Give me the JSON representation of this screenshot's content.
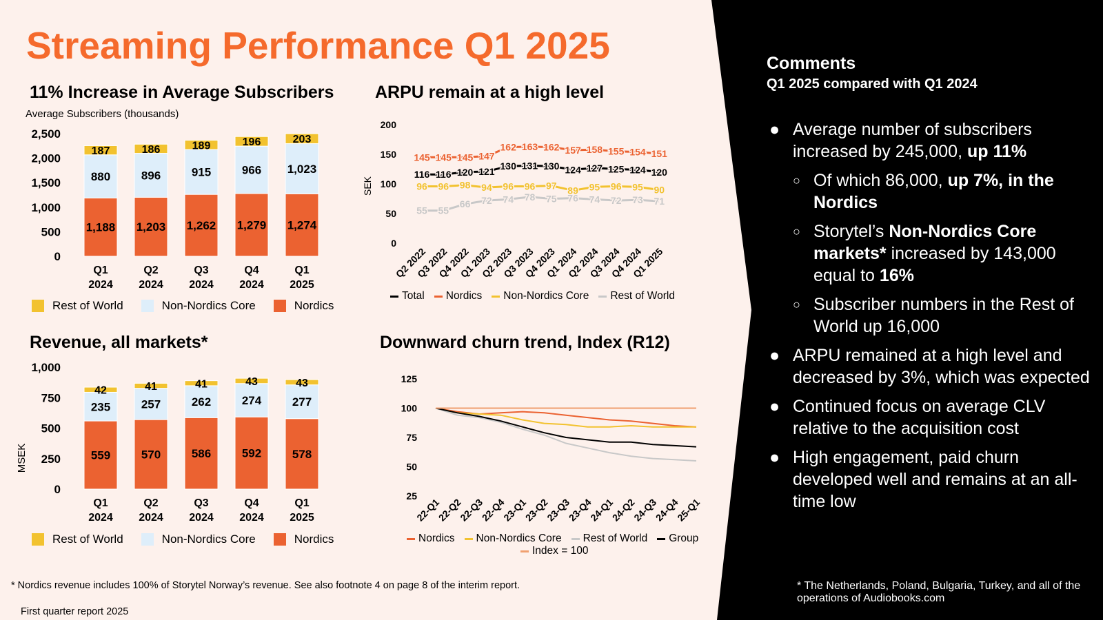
{
  "title": "Streaming Performance Q1 2025",
  "colors": {
    "accent": "#f56a2c",
    "nordics": "#eb6231",
    "non_nordics": "#deeefa",
    "rest_of_world": "#f2c22f",
    "total": "#000000",
    "row_line": "#c8c8c8",
    "panel": "#000000",
    "background": "#fdf1ec"
  },
  "subscribers_chart": {
    "heading": "11% Increase in Average Subscribers",
    "legend": [
      "Rest of World",
      "Non-Nordics Core",
      "Nordics"
    ],
    "chart_data": {
      "type": "bar",
      "stacked": true,
      "title": "11% Increase in Average Subscribers",
      "ylabel": "Average Subscribers (thousands)",
      "ylim": [
        0,
        2500
      ],
      "yticks": [
        "2,500",
        "2,000",
        "1,500",
        "1,000",
        "500",
        "0"
      ],
      "categories": [
        [
          "Q1",
          "2024"
        ],
        [
          "Q2",
          "2024"
        ],
        [
          "Q3",
          "2024"
        ],
        [
          "Q4",
          "2024"
        ],
        [
          "Q1",
          "2025"
        ]
      ],
      "series": [
        {
          "name": "Nordics",
          "values": [
            1188,
            1203,
            1262,
            1279,
            1274
          ],
          "labels": [
            "1,188",
            "1,203",
            "1,262",
            "1,279",
            "1,274"
          ]
        },
        {
          "name": "Non-Nordics Core",
          "values": [
            880,
            896,
            915,
            966,
            1023
          ],
          "labels": [
            "880",
            "896",
            "915",
            "966",
            "1,023"
          ]
        },
        {
          "name": "Rest of World",
          "values": [
            187,
            186,
            189,
            196,
            203
          ],
          "labels": [
            "187",
            "186",
            "189",
            "196",
            "203"
          ]
        }
      ]
    }
  },
  "arpu_chart": {
    "heading": "ARPU remain at a high level",
    "legend": [
      "Total",
      "Nordics",
      "Non-Nordics Core",
      "Rest of World"
    ],
    "chart_data": {
      "type": "line",
      "title": "ARPU remain at a high level",
      "ylabel": "SEK",
      "ylim": [
        0,
        200
      ],
      "yticks": [
        "200",
        "150",
        "100",
        "50",
        "0"
      ],
      "x": [
        "Q2 2022",
        "Q3 2022",
        "Q4 2022",
        "Q1 2023",
        "Q2 2023",
        "Q3 2023",
        "Q4 2023",
        "Q1 2024",
        "Q2 2024",
        "Q3 2024",
        "Q4 2024",
        "Q1 2025"
      ],
      "series": [
        {
          "name": "Nordics",
          "values": [
            145,
            145,
            145,
            147,
            162,
            163,
            162,
            157,
            158,
            155,
            154,
            151
          ]
        },
        {
          "name": "Total",
          "values": [
            116,
            116,
            120,
            121,
            130,
            131,
            130,
            124,
            127,
            125,
            124,
            120
          ]
        },
        {
          "name": "Non-Nordics Core",
          "values": [
            96,
            96,
            98,
            94,
            96,
            96,
            97,
            89,
            95,
            96,
            95,
            90
          ]
        },
        {
          "name": "Rest of World",
          "values": [
            55,
            55,
            66,
            72,
            74,
            78,
            75,
            76,
            74,
            72,
            73,
            71
          ]
        }
      ]
    }
  },
  "revenue_chart": {
    "heading": "Revenue, all markets*",
    "legend": [
      "Rest of World",
      "Non-Nordics Core",
      "Nordics"
    ],
    "chart_data": {
      "type": "bar",
      "stacked": true,
      "title": "Revenue, all markets*",
      "ylabel": "MSEK",
      "ylim": [
        0,
        1000
      ],
      "yticks": [
        "1,000",
        "750",
        "500",
        "250",
        "0"
      ],
      "categories": [
        [
          "Q1",
          "2024"
        ],
        [
          "Q2",
          "2024"
        ],
        [
          "Q3",
          "2024"
        ],
        [
          "Q4",
          "2024"
        ],
        [
          "Q1",
          "2025"
        ]
      ],
      "series": [
        {
          "name": "Nordics",
          "values": [
            559,
            570,
            586,
            592,
            578
          ],
          "labels": [
            "559",
            "570",
            "586",
            "592",
            "578"
          ]
        },
        {
          "name": "Non-Nordics Core",
          "values": [
            235,
            257,
            262,
            274,
            277
          ],
          "labels": [
            "235",
            "257",
            "262",
            "274",
            "277"
          ]
        },
        {
          "name": "Rest of World",
          "values": [
            42,
            41,
            41,
            43,
            43
          ],
          "labels": [
            "42",
            "41",
            "41",
            "43",
            "43"
          ]
        }
      ]
    }
  },
  "churn_chart": {
    "heading": "Downward churn trend, Index (R12)",
    "legend": [
      "Nordics",
      "Non-Nordics Core",
      "Rest of World",
      "Group",
      "Index = 100"
    ],
    "chart_data": {
      "type": "line",
      "title": "Downward churn trend, Index (R12)",
      "ylim": [
        25,
        125
      ],
      "yticks": [
        "125",
        "100",
        "75",
        "50",
        "25"
      ],
      "x": [
        "22-Q1",
        "22-Q2",
        "22-Q3",
        "22-Q4",
        "23-Q1",
        "23-Q2",
        "23-Q3",
        "23-Q4",
        "24-Q1",
        "24-Q2",
        "24-Q3",
        "24-Q4",
        "25-Q1"
      ],
      "series": [
        {
          "name": "Nordics",
          "values": [
            100,
            97,
            95,
            96,
            97,
            96,
            94,
            92,
            90,
            89,
            87,
            85,
            84
          ]
        },
        {
          "name": "Non-Nordics Core",
          "values": [
            100,
            96,
            95,
            94,
            90,
            87,
            86,
            84,
            84,
            85,
            84,
            84,
            84
          ]
        },
        {
          "name": "Rest of World",
          "values": [
            100,
            94,
            92,
            88,
            82,
            77,
            70,
            66,
            62,
            59,
            57,
            56,
            55
          ]
        },
        {
          "name": "Group",
          "values": [
            100,
            96,
            93,
            89,
            84,
            79,
            75,
            73,
            71,
            71,
            69,
            68,
            67
          ]
        },
        {
          "name": "Index = 100",
          "values": [
            100,
            100,
            100,
            100,
            100,
            100,
            100,
            100,
            100,
            100,
            100,
            100,
            100
          ]
        }
      ]
    }
  },
  "comments": {
    "heading": "Comments",
    "subheading": "Q1 2025 compared with Q1 2024",
    "bullet1": {
      "pre": "Average number of subscribers increased by 245,000, ",
      "bold": "up 11%"
    },
    "sub1": {
      "pre": "Of which 86,000, ",
      "bold": "up 7%, in the Nordics"
    },
    "sub2": {
      "pre": "Storytel’s ",
      "bold1": "Non-Nordics Core markets*",
      "mid": " increased by 143,000 equal to ",
      "bold2": "16%"
    },
    "sub3": "Subscriber numbers in the Rest of World up 16,000",
    "bullet2": "ARPU remained at a high level and decreased by 3%, which was expected",
    "bullet3": "Continued focus on average CLV relative to the acquisition cost",
    "bullet4": "High engagement, paid churn developed well and remains at an all-time low",
    "bullet_char": "●",
    "sub_bullet_char": "○"
  },
  "footnotes": {
    "revenue": "* Nordics revenue includes 100% of Storytel Norway’s revenue. See also footnote 4 on page 8 of the interim report.",
    "report": "First quarter report 2025",
    "markets": "* The Netherlands, Poland, Bulgaria, Turkey, and all of the operations of Audiobooks.com"
  }
}
